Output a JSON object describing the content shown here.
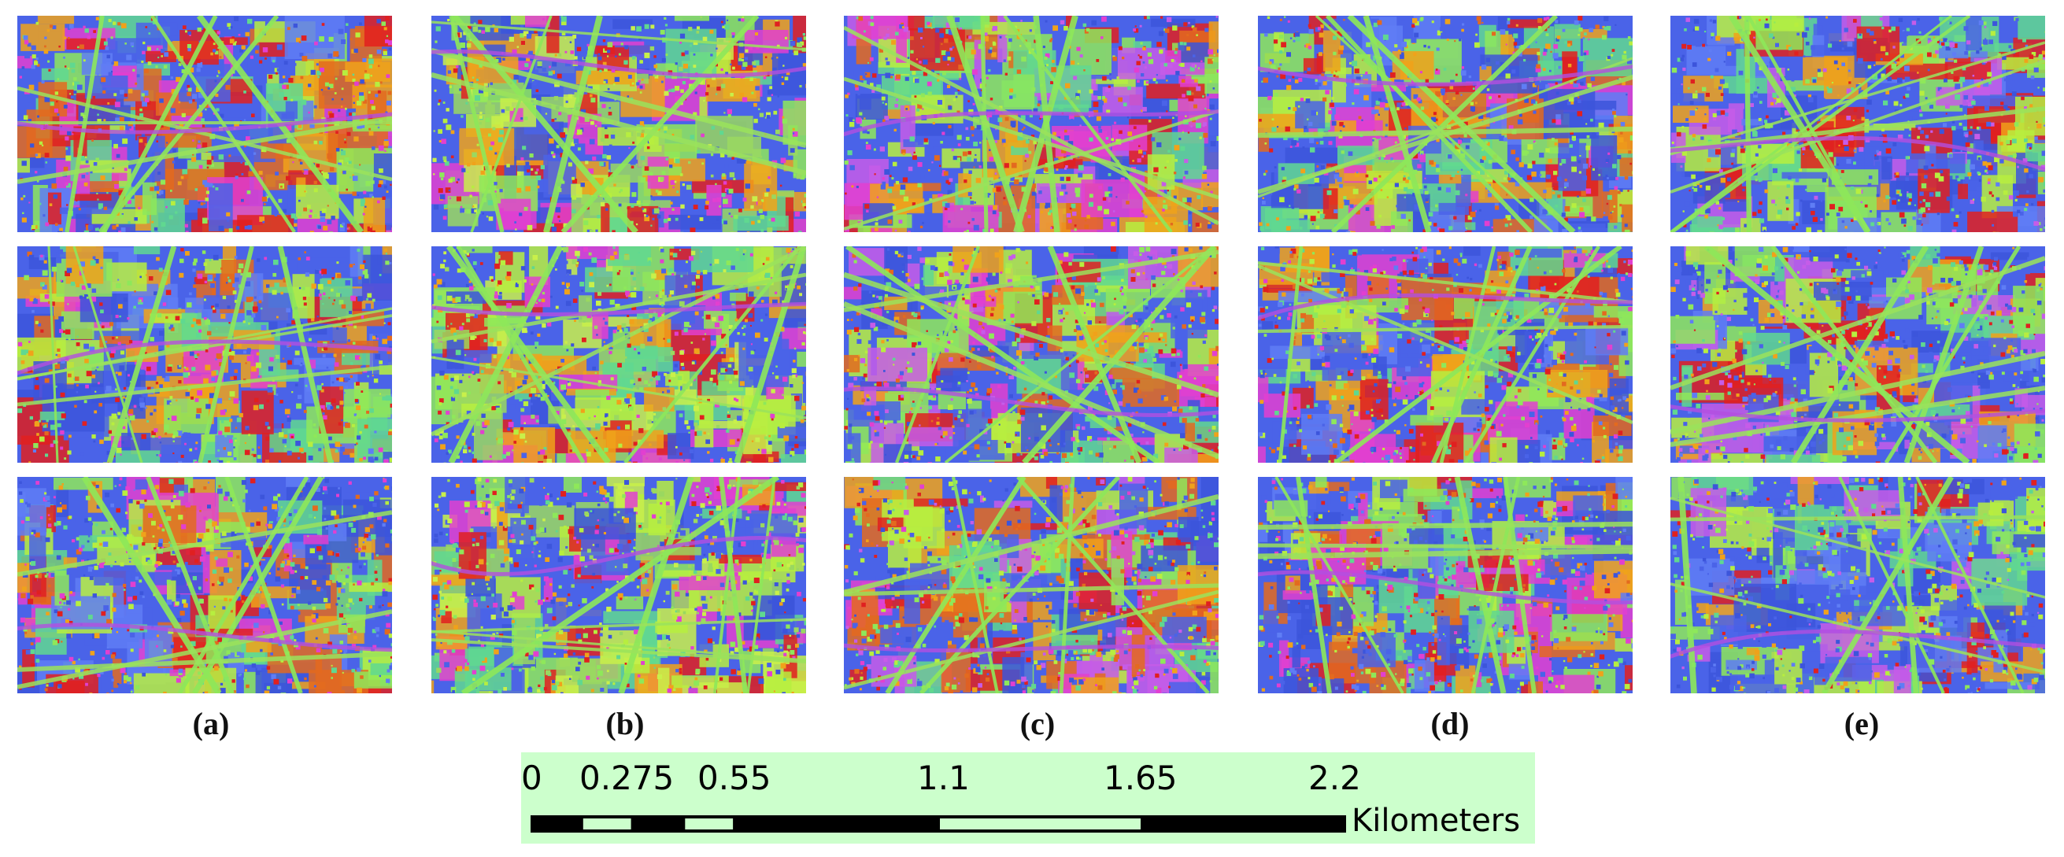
{
  "panels": [
    {
      "label": "(a)",
      "palette": [
        "#4a63e8",
        "#3c55db",
        "#5f7df5",
        "#8ee85a",
        "#b7ee3f",
        "#f0a21a",
        "#e36a1f",
        "#60d890",
        "#e02020",
        "#e23fd0"
      ]
    },
    {
      "label": "(b)",
      "palette": [
        "#4a63e8",
        "#3c55db",
        "#8ee85a",
        "#b7ee3f",
        "#c9f04a",
        "#f0a21a",
        "#60d890",
        "#e23fd0",
        "#e02020",
        "#9ad860"
      ]
    },
    {
      "label": "(c)",
      "palette": [
        "#4a63e8",
        "#3c55db",
        "#8ee85a",
        "#60d890",
        "#f0a21a",
        "#e23fd0",
        "#c65ce8",
        "#e36a1f",
        "#b7ee3f",
        "#e02020"
      ]
    },
    {
      "label": "(d)",
      "palette": [
        "#4a63e8",
        "#3c55db",
        "#5f7df5",
        "#8ee85a",
        "#60d890",
        "#f0a21a",
        "#e23fd0",
        "#e36a1f",
        "#b7ee3f",
        "#e02020"
      ]
    },
    {
      "label": "(e)",
      "palette": [
        "#4a63e8",
        "#3c55db",
        "#5f7df5",
        "#8ee85a",
        "#60d890",
        "#b7ee3f",
        "#f0a21a",
        "#e02020",
        "#c65ce8",
        "#4a63e8"
      ]
    }
  ],
  "scale": {
    "ticks": [
      "0",
      "0.275",
      "0.55",
      "1.1",
      "1.65",
      "2.2"
    ],
    "tick_values_km": [
      0,
      0.275,
      0.55,
      1.1,
      1.65,
      2.2
    ],
    "unit": "Kilometers",
    "background": "#ccffcc"
  }
}
